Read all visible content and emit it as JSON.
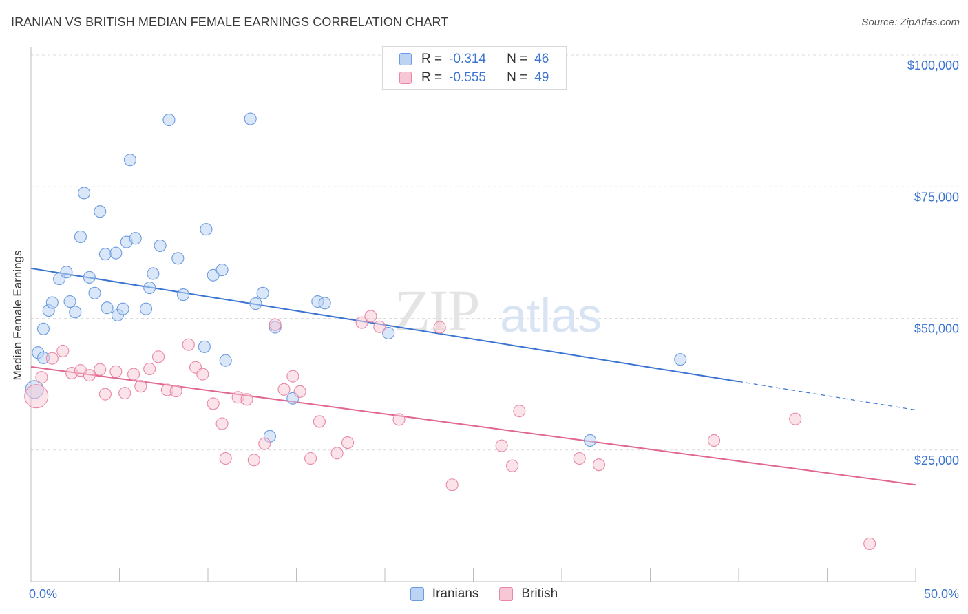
{
  "title": "IRANIAN VS BRITISH MEDIAN FEMALE EARNINGS CORRELATION CHART",
  "source": "Source: ZipAtlas.com",
  "watermark": {
    "zip": "ZIP",
    "atlas": "atlas"
  },
  "legend": {
    "r_label": "R =",
    "n_label": "N =",
    "iranians": {
      "r": "-0.314",
      "n": "46"
    },
    "british": {
      "r": "-0.555",
      "n": "49"
    }
  },
  "bottom_legend": {
    "iranians": "Iranians",
    "british": "British"
  },
  "colors": {
    "blue": "#3a73d0",
    "blue_fill": "#bcd3f3",
    "pink": "#e0668f",
    "pink_fill": "#f8c7d6"
  },
  "chart_data": {
    "type": "scatter",
    "title": "IRANIAN VS BRITISH MEDIAN FEMALE EARNINGS CORRELATION CHART",
    "xlabel": "",
    "ylabel": "Median Female Earnings",
    "xlim": [
      0,
      50
    ],
    "ylim": [
      0,
      100000
    ],
    "x_tick_labels": [
      "0.0%",
      "50.0%"
    ],
    "y_ticks": [
      25000,
      50000,
      75000,
      100000
    ],
    "y_tick_labels": [
      "$25,000",
      "$50,000",
      "$75,000",
      "$100,000"
    ],
    "series": [
      {
        "name": "Iranians",
        "color": "#3a73d0",
        "trend": {
          "x0": 0,
          "y0": 59500,
          "x1": 40,
          "y1": 38000,
          "dashed_to_x": 50,
          "dashed_to_y": 32600
        },
        "points": [
          [
            0.2,
            36500
          ],
          [
            0.4,
            43500
          ],
          [
            0.7,
            42500
          ],
          [
            0.7,
            48000
          ],
          [
            1.0,
            51500
          ],
          [
            1.2,
            53000
          ],
          [
            1.6,
            57500
          ],
          [
            2.0,
            58800
          ],
          [
            2.2,
            53200
          ],
          [
            2.5,
            51200
          ],
          [
            2.8,
            65500
          ],
          [
            3.0,
            73800
          ],
          [
            3.3,
            57800
          ],
          [
            3.6,
            54800
          ],
          [
            3.9,
            70300
          ],
          [
            4.2,
            62200
          ],
          [
            4.3,
            52000
          ],
          [
            4.8,
            62400
          ],
          [
            4.9,
            50600
          ],
          [
            5.2,
            51800
          ],
          [
            5.4,
            64500
          ],
          [
            5.6,
            80100
          ],
          [
            5.9,
            65200
          ],
          [
            6.5,
            51800
          ],
          [
            6.7,
            55800
          ],
          [
            6.9,
            58500
          ],
          [
            7.3,
            63800
          ],
          [
            7.8,
            87700
          ],
          [
            8.3,
            61400
          ],
          [
            8.6,
            54500
          ],
          [
            9.8,
            44600
          ],
          [
            9.9,
            66900
          ],
          [
            10.3,
            58200
          ],
          [
            10.8,
            59200
          ],
          [
            11.0,
            42000
          ],
          [
            12.4,
            87900
          ],
          [
            12.7,
            52800
          ],
          [
            13.1,
            54800
          ],
          [
            13.5,
            27600
          ],
          [
            13.8,
            48300
          ],
          [
            14.8,
            34800
          ],
          [
            16.2,
            53200
          ],
          [
            16.6,
            52900
          ],
          [
            20.2,
            47200
          ],
          [
            31.6,
            26800
          ],
          [
            36.7,
            42200
          ]
        ]
      },
      {
        "name": "British",
        "color": "#e0668f",
        "trend": {
          "x0": 0,
          "y0": 40800,
          "x1": 50,
          "y1": 18400
        },
        "points": [
          [
            0.3,
            35200
          ],
          [
            0.6,
            38800
          ],
          [
            1.2,
            42400
          ],
          [
            1.8,
            43800
          ],
          [
            2.3,
            39600
          ],
          [
            2.8,
            40100
          ],
          [
            3.3,
            39200
          ],
          [
            3.9,
            40300
          ],
          [
            4.2,
            35600
          ],
          [
            4.8,
            39900
          ],
          [
            5.3,
            35800
          ],
          [
            5.8,
            39400
          ],
          [
            6.2,
            37100
          ],
          [
            6.7,
            40400
          ],
          [
            7.2,
            42700
          ],
          [
            7.7,
            36400
          ],
          [
            8.2,
            36200
          ],
          [
            8.9,
            45000
          ],
          [
            9.3,
            40700
          ],
          [
            9.7,
            39400
          ],
          [
            10.3,
            33800
          ],
          [
            10.8,
            30000
          ],
          [
            11.0,
            23400
          ],
          [
            11.7,
            35000
          ],
          [
            12.2,
            34600
          ],
          [
            12.6,
            23100
          ],
          [
            13.2,
            26200
          ],
          [
            13.8,
            48800
          ],
          [
            14.3,
            36500
          ],
          [
            14.8,
            39000
          ],
          [
            15.2,
            36100
          ],
          [
            15.8,
            23400
          ],
          [
            16.3,
            30400
          ],
          [
            17.3,
            24400
          ],
          [
            17.9,
            26400
          ],
          [
            18.7,
            49200
          ],
          [
            19.2,
            50400
          ],
          [
            19.7,
            48400
          ],
          [
            20.8,
            30800
          ],
          [
            23.1,
            48300
          ],
          [
            23.8,
            18400
          ],
          [
            26.6,
            25800
          ],
          [
            27.2,
            22000
          ],
          [
            27.6,
            32400
          ],
          [
            31.0,
            23400
          ],
          [
            32.1,
            22200
          ],
          [
            38.6,
            26800
          ],
          [
            43.2,
            30900
          ],
          [
            47.4,
            7200
          ]
        ]
      }
    ]
  }
}
